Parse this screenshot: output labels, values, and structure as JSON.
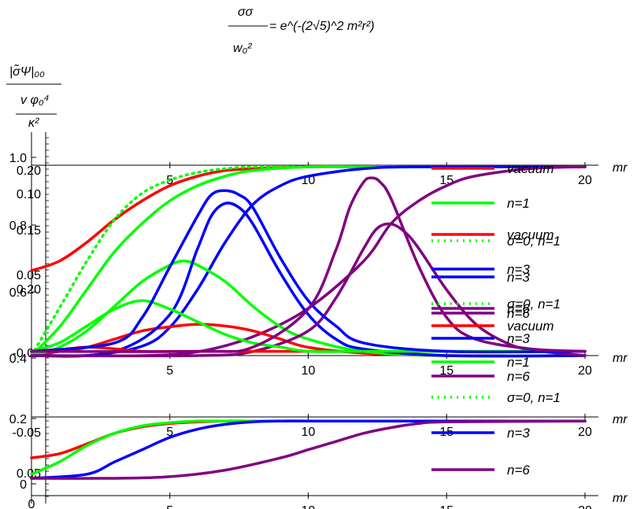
{
  "chart_data": {
    "type": "line",
    "title_expr": {
      "numerator": "σσ",
      "denominator": "w₀²",
      "rhs": "= e^(-(2√5)^2 m²r²)"
    },
    "ylabel_top": "|σ̃Ψ|₀₀",
    "ylabel_mid": "v φ₀⁴",
    "ylabel_bot": "κ²",
    "xlabel": "mr",
    "xlim": [
      0,
      20
    ],
    "panels": [
      {
        "y_ticks": [
          "1.0",
          "0.8",
          "0.6",
          "0.4",
          "0.2",
          "0"
        ],
        "ylim": [
          0,
          1.05
        ],
        "series": [
          {
            "name": "vacuum",
            "color": "#ff0000",
            "style": "solid",
            "x": [
              0,
              1,
              2,
              3,
              4,
              5,
              6,
              7,
              8,
              10,
              12,
              15,
              20
            ],
            "y": [
              0.45,
              0.5,
              0.6,
              0.72,
              0.82,
              0.9,
              0.95,
              0.98,
              0.99,
              1.0,
              1.0,
              1.0,
              1.0
            ]
          },
          {
            "name": "n=1",
            "color": "#00ff00",
            "style": "solid",
            "x": [
              0,
              1,
              2,
              3,
              4,
              5,
              6,
              7,
              8,
              10,
              12,
              15,
              20
            ],
            "y": [
              0.0,
              0.15,
              0.35,
              0.55,
              0.7,
              0.82,
              0.9,
              0.95,
              0.98,
              1.0,
              1.0,
              1.0,
              1.0
            ]
          },
          {
            "name": "σ=0, n=1",
            "color": "#00ff00",
            "style": "dotted",
            "x": [
              0,
              1,
              2,
              3,
              4,
              5,
              6,
              7,
              8,
              10,
              12,
              15,
              20
            ],
            "y": [
              0.0,
              0.25,
              0.5,
              0.72,
              0.86,
              0.93,
              0.97,
              0.99,
              1.0,
              1.0,
              1.0,
              1.0,
              1.0
            ]
          },
          {
            "name": "n=3",
            "color": "#0000ff",
            "style": "solid",
            "x": [
              0,
              2,
              4,
              5,
              6,
              7,
              8,
              9,
              10,
              12,
              14,
              20
            ],
            "y": [
              0.0,
              0.0,
              0.05,
              0.15,
              0.35,
              0.6,
              0.8,
              0.9,
              0.95,
              0.99,
              1.0,
              1.0
            ]
          },
          {
            "name": "n=6",
            "color": "#800080",
            "style": "solid",
            "x": [
              0,
              4,
              6,
              8,
              10,
              12,
              13,
              14,
              15,
              16,
              18,
              20
            ],
            "y": [
              0.0,
              0.0,
              0.02,
              0.1,
              0.25,
              0.5,
              0.7,
              0.82,
              0.9,
              0.95,
              0.99,
              1.0
            ]
          }
        ]
      },
      {
        "y_ticks": [
          "0.20",
          "0.15",
          "0.10",
          "0.05",
          "0.05"
        ],
        "ylim": [
          0,
          0.22
        ],
        "series": [
          {
            "name": "vacuum",
            "color": "#ff0000",
            "style": "solid",
            "x": [
              0,
              1,
              2,
              3,
              4,
              5,
              6,
              7,
              8,
              9,
              10,
              12,
              15,
              20
            ],
            "y": [
              0.0,
              0.005,
              0.01,
              0.02,
              0.03,
              0.035,
              0.038,
              0.036,
              0.03,
              0.02,
              0.01,
              0.003,
              0.0,
              0.0
            ]
          },
          {
            "name": "n=1",
            "color": "#00ff00",
            "style": "solid",
            "x": [
              0,
              1,
              2,
              3,
              4,
              5,
              5.5,
              6,
              7,
              8,
              9,
              10,
              12,
              15,
              20
            ],
            "y": [
              0.0,
              0.01,
              0.03,
              0.06,
              0.09,
              0.11,
              0.115,
              0.11,
              0.09,
              0.06,
              0.035,
              0.02,
              0.005,
              0.0,
              0.0
            ]
          },
          {
            "name": "n=3",
            "color": "#0000ff",
            "style": "solid",
            "x": [
              0,
              3,
              5,
              6,
              6.5,
              7,
              7.5,
              8,
              9,
              10,
              11,
              12,
              15,
              20
            ],
            "y": [
              0.0,
              0.005,
              0.05,
              0.13,
              0.17,
              0.185,
              0.18,
              0.16,
              0.1,
              0.05,
              0.02,
              0.008,
              0.0,
              0.0
            ]
          },
          {
            "name": "n=6",
            "color": "#800080",
            "style": "solid",
            "x": [
              0,
              6,
              8,
              10,
              11,
              12,
              12.5,
              13,
              13.5,
              14,
              15,
              16,
              17,
              18,
              20
            ],
            "y": [
              0.0,
              0.0,
              0.005,
              0.03,
              0.07,
              0.13,
              0.155,
              0.16,
              0.15,
              0.13,
              0.08,
              0.04,
              0.018,
              0.007,
              0.0
            ]
          }
        ]
      },
      {
        "y_ticks": [
          "0.20",
          "0.15",
          "0.10",
          "0.05"
        ],
        "ylim": [
          -0.22,
          0.005
        ],
        "series": [
          {
            "name": "vacuum",
            "color": "#ff0000",
            "style": "solid",
            "x": [
              0,
              1,
              2,
              3,
              4,
              5,
              6,
              7,
              8,
              10,
              12,
              15,
              20
            ],
            "y": [
              0.0,
              -0.002,
              -0.005,
              -0.003,
              0.0,
              0.0,
              0.0,
              0.0,
              0.0,
              0.0,
              0.0,
              0.0,
              0.0
            ]
          },
          {
            "name": "n=1",
            "color": "#00ff00",
            "style": "solid",
            "x": [
              0,
              1,
              2,
              3,
              4,
              5,
              6,
              7,
              8,
              9,
              10,
              12,
              15,
              20
            ],
            "y": [
              0.0,
              -0.01,
              -0.03,
              -0.05,
              -0.06,
              -0.05,
              -0.035,
              -0.02,
              -0.01,
              -0.005,
              0.0,
              0.0,
              0.0,
              0.0
            ]
          },
          {
            "name": "n=3",
            "color": "#0000ff",
            "style": "solid",
            "x": [
              0,
              3,
              4,
              5,
              6,
              6.5,
              7,
              7.5,
              8,
              9,
              10,
              11,
              12,
              15,
              20
            ],
            "y": [
              0.0,
              -0.01,
              -0.04,
              -0.1,
              -0.16,
              -0.185,
              -0.19,
              -0.185,
              -0.17,
              -0.11,
              -0.06,
              -0.03,
              -0.01,
              0.0,
              0.0
            ]
          },
          {
            "name": "n=6",
            "color": "#800080",
            "style": "solid",
            "x": [
              0,
              6,
              8,
              10,
              11,
              11.5,
              12,
              12.3,
              12.6,
              13,
              14,
              15,
              16,
              18,
              20
            ],
            "y": [
              0.0,
              0.0,
              -0.005,
              -0.05,
              -0.12,
              -0.17,
              -0.2,
              -0.205,
              -0.2,
              -0.18,
              -0.1,
              -0.04,
              -0.015,
              -0.003,
              0.0
            ]
          }
        ]
      },
      {
        "y_ticks": [
          "0",
          "-0.05"
        ],
        "ylim": [
          -0.07,
          0.005
        ],
        "series": [
          {
            "name": "vacuum",
            "color": "#ff0000",
            "style": "solid",
            "x": [
              0,
              1,
              2,
              3,
              4,
              5,
              6,
              7,
              8,
              10,
              12,
              20
            ],
            "y": [
              -0.045,
              -0.04,
              -0.028,
              -0.015,
              -0.007,
              -0.003,
              -0.001,
              0.0,
              0.0,
              0.0,
              0.0,
              0.0
            ]
          },
          {
            "name": "n=1",
            "color": "#00ff00",
            "style": "solid",
            "x": [
              0,
              1,
              2,
              3,
              4,
              5,
              6,
              7,
              8,
              10,
              12,
              20
            ],
            "y": [
              -0.065,
              -0.05,
              -0.03,
              -0.015,
              -0.006,
              -0.002,
              0.0,
              0.0,
              0.0,
              0.0,
              0.0,
              0.0
            ]
          },
          {
            "name": "n=3",
            "color": "#0000ff",
            "style": "solid",
            "x": [
              0,
              2,
              3,
              4,
              5,
              6,
              7,
              8,
              9,
              10,
              12,
              20
            ],
            "y": [
              -0.07,
              -0.065,
              -0.05,
              -0.035,
              -0.02,
              -0.01,
              -0.004,
              -0.001,
              0.0,
              0.0,
              0.0,
              0.0
            ]
          },
          {
            "name": "n=6",
            "color": "#800080",
            "style": "solid",
            "x": [
              0,
              3,
              5,
              7,
              9,
              10,
              11,
              12,
              13,
              14,
              15,
              20
            ],
            "y": [
              -0.07,
              -0.07,
              -0.068,
              -0.06,
              -0.045,
              -0.035,
              -0.025,
              -0.015,
              -0.008,
              -0.003,
              -0.001,
              0.0
            ]
          }
        ]
      }
    ],
    "x_ticks": [
      "5",
      "10",
      "15",
      "20"
    ],
    "y_ticks_left": [
      "1.0",
      "0.8",
      "0.6",
      "0.4",
      "0.2",
      "0"
    ],
    "legend": {
      "placement": "right",
      "blocks": [
        [
          "vacuum",
          "n=1",
          "vacuum",
          "σ=0, n=1",
          "n=3",
          "n=3",
          "n=6"
        ],
        [
          "σ=0, n=1",
          "n=6",
          "vacuum",
          "n=3",
          "n=1",
          "n=6",
          "σ=0, n=1"
        ],
        [
          "n=3",
          "n=6"
        ]
      ]
    }
  }
}
